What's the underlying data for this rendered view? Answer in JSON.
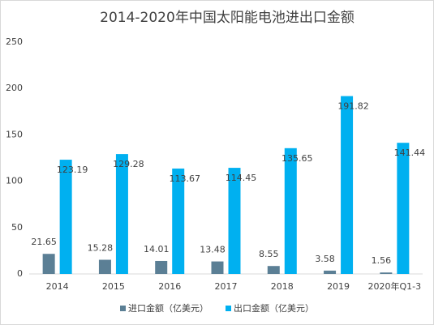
{
  "chart_data": {
    "type": "bar",
    "title": "2014-2020年中国太阳能电池进出口金额",
    "categories": [
      "2014",
      "2015",
      "2016",
      "2017",
      "2018",
      "2019",
      "2020年Q1-3"
    ],
    "series": [
      {
        "name": "进口金额（亿美元）",
        "color": "#5b7f95",
        "values": [
          21.65,
          15.28,
          14.01,
          13.48,
          8.55,
          3.58,
          1.56
        ]
      },
      {
        "name": "出口金额（亿美元）",
        "color": "#00b0f0",
        "values": [
          123.19,
          129.28,
          113.67,
          114.45,
          135.65,
          191.82,
          141.44
        ]
      }
    ],
    "ylim": [
      0,
      250
    ],
    "yticks": [
      0,
      50,
      100,
      150,
      200,
      250
    ],
    "legend": "bottom"
  }
}
